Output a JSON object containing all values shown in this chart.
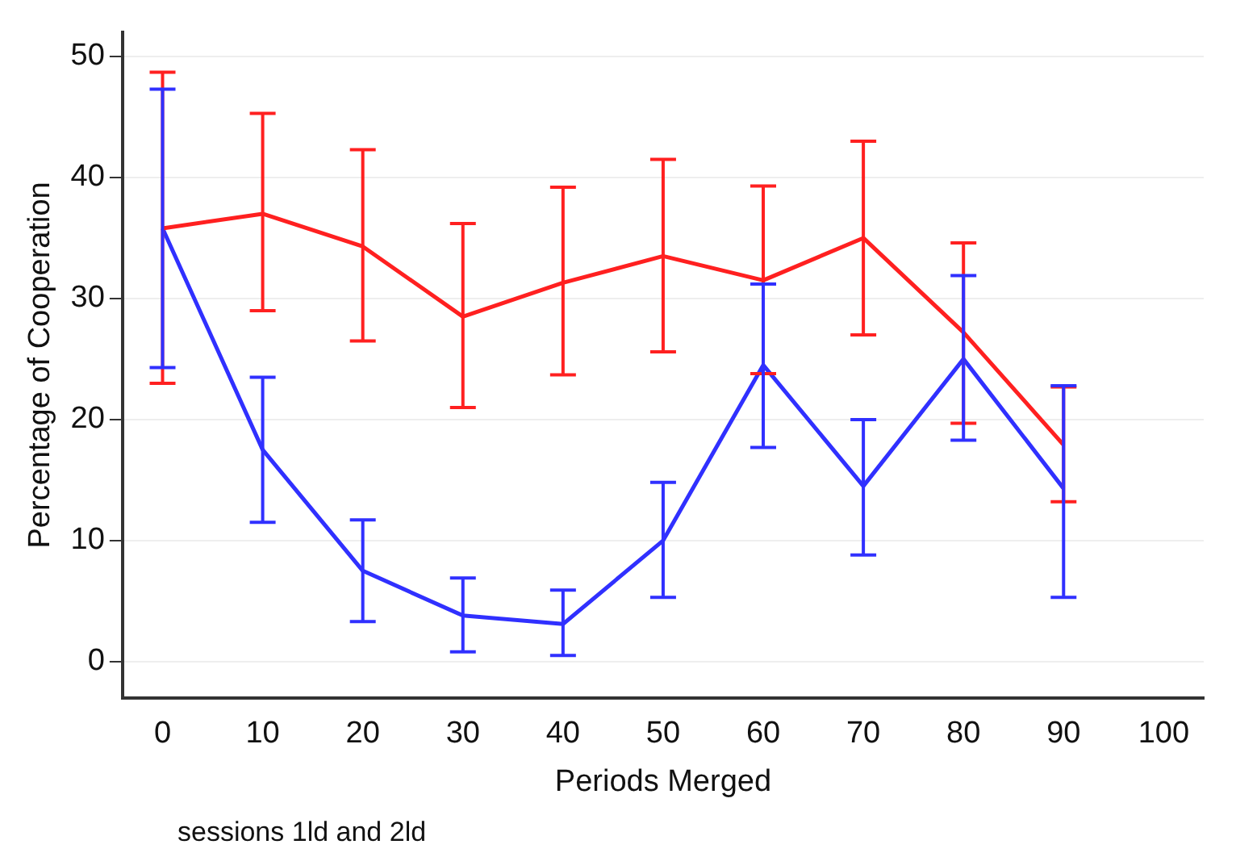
{
  "chart_data": {
    "type": "line",
    "xlabel": "Periods Merged",
    "ylabel": "Percentage of Cooperation",
    "x": [
      0,
      10,
      20,
      30,
      40,
      50,
      60,
      70,
      80,
      90
    ],
    "series": [
      {
        "name": null,
        "color": "#ff2020",
        "values": [
          35.8,
          37,
          34.3,
          28.5,
          31.3,
          33.5,
          31.5,
          35,
          27.2,
          17.9
        ],
        "errors": [
          [
            23,
            48.7
          ],
          [
            29,
            45.3
          ],
          [
            26.5,
            42.3
          ],
          [
            21,
            36.2
          ],
          [
            23.7,
            39.2
          ],
          [
            25.6,
            41.5
          ],
          [
            23.8,
            39.3
          ],
          [
            27,
            43
          ],
          [
            19.7,
            34.6
          ],
          [
            13.2,
            22.7
          ]
        ]
      },
      {
        "name": null,
        "color": "#3030ff",
        "values": [
          35.8,
          17.5,
          7.5,
          3.8,
          3.1,
          10,
          24.5,
          14.5,
          25,
          14.3
        ],
        "errors": [
          [
            24.3,
            47.3
          ],
          [
            11.5,
            23.5
          ],
          [
            3.3,
            11.7
          ],
          [
            0.8,
            6.9
          ],
          [
            0.5,
            5.9
          ],
          [
            5.3,
            14.8
          ],
          [
            17.7,
            31.2
          ],
          [
            8.8,
            20
          ],
          [
            18.3,
            31.9
          ],
          [
            5.3,
            22.8
          ]
        ]
      }
    ],
    "xlim": [
      -4,
      104
    ],
    "xticks": [
      0,
      10,
      20,
      30,
      40,
      50,
      60,
      70,
      80,
      90,
      100
    ],
    "ylim": [
      -3,
      52
    ],
    "yticks": [
      0,
      10,
      20,
      30,
      40,
      50
    ],
    "grid": "y",
    "legend": false,
    "marker": "none",
    "line_style": "solid",
    "annotations": [
      "sessions 1ld and 2ld"
    ]
  }
}
